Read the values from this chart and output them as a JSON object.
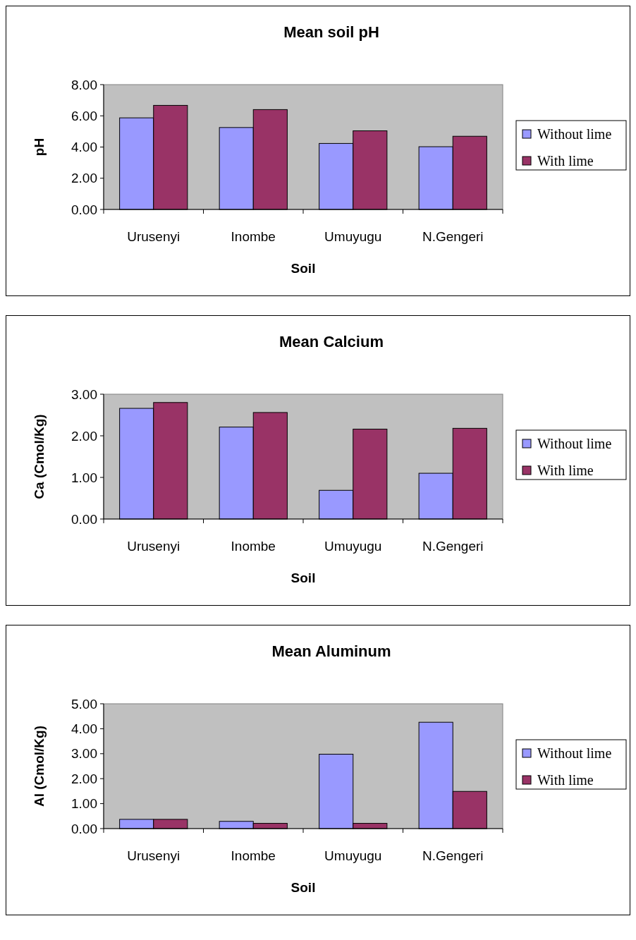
{
  "chart_data": [
    {
      "type": "bar",
      "title": "Mean soil pH",
      "xlabel": "Soil",
      "ylabel": "pH",
      "categories": [
        "Urusenyi",
        "Inombe",
        "Umuyugu",
        "N.Gengeri"
      ],
      "series": [
        {
          "name": "Without lime",
          "color": "#9999ff",
          "values": [
            5.87,
            5.25,
            4.23,
            4.02
          ]
        },
        {
          "name": "With lime",
          "color": "#993366",
          "values": [
            6.67,
            6.4,
            5.04,
            4.69
          ]
        }
      ],
      "ylim": [
        0,
        8
      ],
      "yticks": [
        {
          "value": 0,
          "label": "0.00"
        },
        {
          "value": 2,
          "label": "2.00"
        },
        {
          "value": 4,
          "label": "4.00"
        },
        {
          "value": 6,
          "label": "6.00"
        },
        {
          "value": 8,
          "label": "8.00"
        }
      ],
      "legend": "right"
    },
    {
      "type": "bar",
      "title": "Mean Calcium",
      "xlabel": "Soil",
      "ylabel": "Ca (Cmol/Kg)",
      "categories": [
        "Urusenyi",
        "Inombe",
        "Umuyugu",
        "N.Gengeri"
      ],
      "series": [
        {
          "name": "Without lime",
          "color": "#9999ff",
          "values": [
            2.66,
            2.21,
            0.69,
            1.1
          ]
        },
        {
          "name": "With lime",
          "color": "#993366",
          "values": [
            2.8,
            2.56,
            2.16,
            2.18
          ]
        }
      ],
      "ylim": [
        0,
        3
      ],
      "yticks": [
        {
          "value": 0,
          "label": "0.00"
        },
        {
          "value": 1,
          "label": "1.00"
        },
        {
          "value": 2,
          "label": "2.00"
        },
        {
          "value": 3,
          "label": "3.00"
        }
      ],
      "legend": "right"
    },
    {
      "type": "bar",
      "title": "Mean Aluminum",
      "xlabel": "Soil",
      "ylabel": "Al (Cmol/Kg)",
      "categories": [
        "Urusenyi",
        "Inombe",
        "Umuyugu",
        "N.Gengeri"
      ],
      "series": [
        {
          "name": "Without lime",
          "color": "#9999ff",
          "values": [
            0.37,
            0.29,
            2.98,
            4.26
          ]
        },
        {
          "name": "With lime",
          "color": "#993366",
          "values": [
            0.37,
            0.21,
            0.21,
            1.49
          ]
        }
      ],
      "ylim": [
        0,
        5
      ],
      "yticks": [
        {
          "value": 0,
          "label": "0.00"
        },
        {
          "value": 1,
          "label": "1.00"
        },
        {
          "value": 2,
          "label": "2.00"
        },
        {
          "value": 3,
          "label": "3.00"
        },
        {
          "value": 4,
          "label": "4.00"
        },
        {
          "value": 5,
          "label": "5.00"
        }
      ],
      "legend": "right"
    }
  ]
}
